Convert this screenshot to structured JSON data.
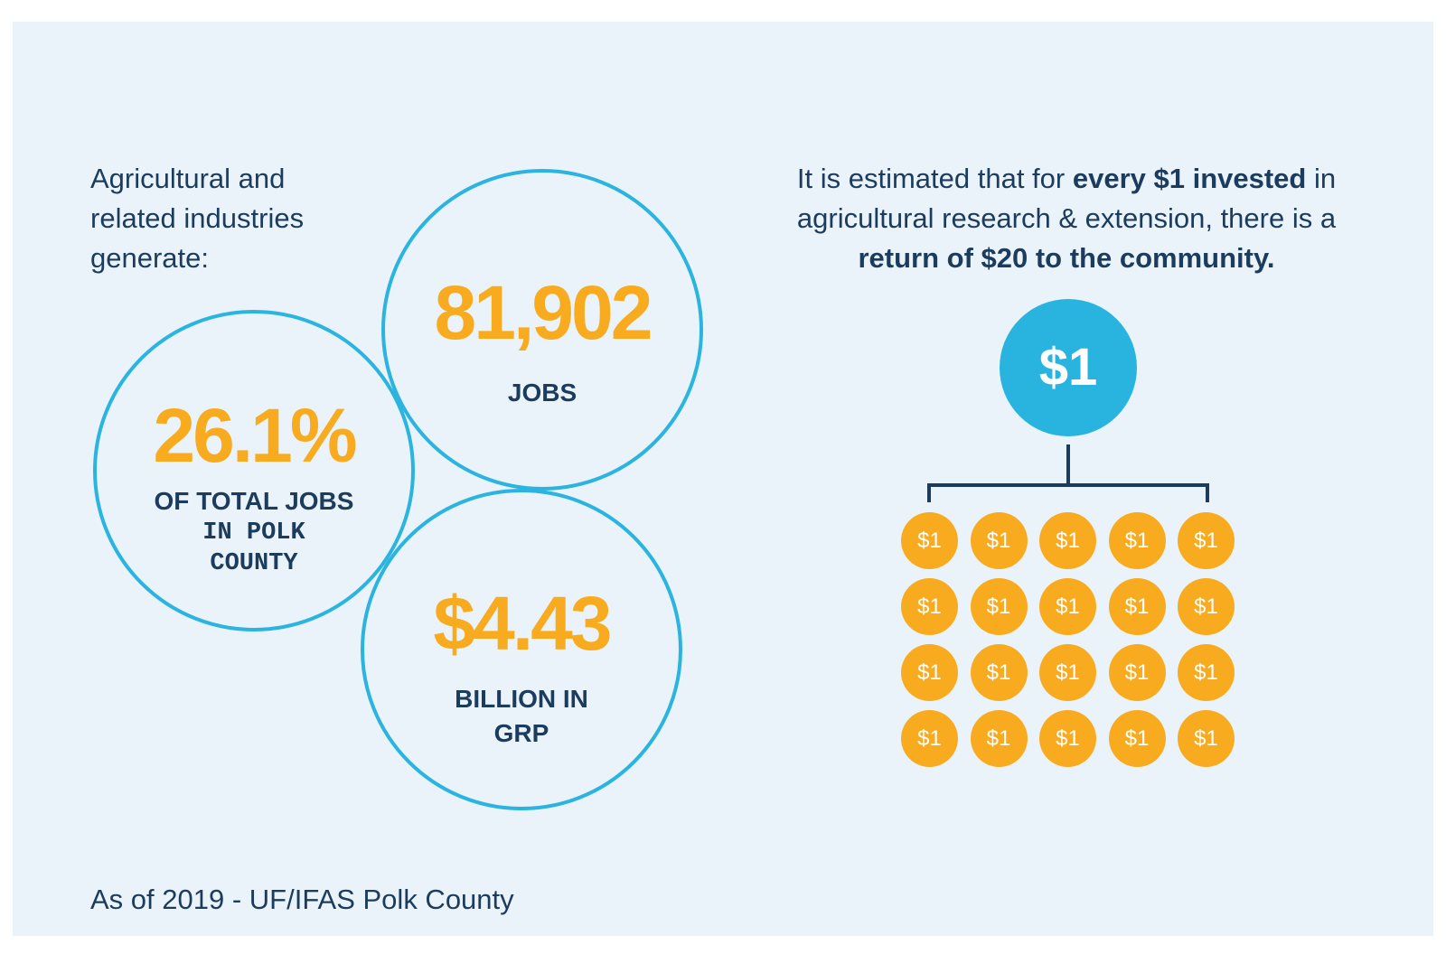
{
  "intro": {
    "lines": [
      "Agricultural and",
      "related industries",
      "generate:"
    ]
  },
  "stats": {
    "jobs": {
      "value": "81,902",
      "label": "JOBS"
    },
    "share": {
      "value": "26.1%",
      "label_line1": "OF TOTAL JOBS",
      "label_line2": "IN POLK",
      "label_line3": "COUNTY"
    },
    "grp": {
      "value": "$4.43",
      "label_line1": "BILLION IN",
      "label_line2": "GRP"
    }
  },
  "roi": {
    "line1_pre": "It is estimated that for ",
    "line1_bold": "every $1 invested",
    "line1_post": " in",
    "line2": "agricultural research & extension, there is a",
    "line3_bold": "return of $20 to the community."
  },
  "investment": {
    "root_label": "$1",
    "coin_label": "$1",
    "coin_count": 20,
    "colors": {
      "root": "#29b4df",
      "coin": "#f8ab1f",
      "connector": "#1c3c5e"
    }
  },
  "source": "As of 2019 - UF/IFAS Polk County",
  "colors": {
    "accent_orange": "#f8ab1f",
    "ring_blue": "#2ab4df",
    "navy": "#1c3c5e",
    "background": "#eaf3fa"
  }
}
